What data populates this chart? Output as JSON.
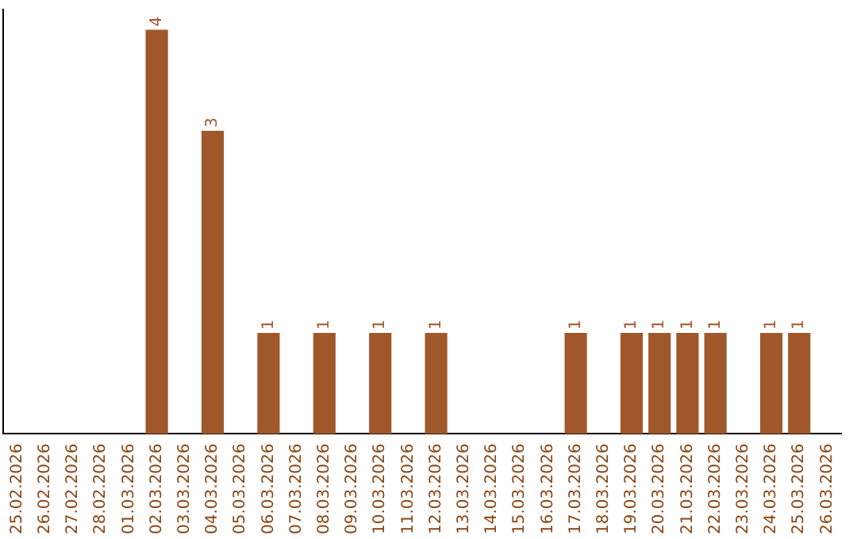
{
  "chart_data": {
    "type": "bar",
    "categories": [
      "25.02.2026",
      "26.02.2026",
      "27.02.2026",
      "28.02.2026",
      "01.03.2026",
      "02.03.2026",
      "03.03.2026",
      "04.03.2026",
      "05.03.2026",
      "06.03.2026",
      "07.03.2026",
      "08.03.2026",
      "09.03.2026",
      "10.03.2026",
      "11.03.2026",
      "12.03.2026",
      "13.03.2026",
      "14.03.2026",
      "15.03.2026",
      "16.03.2026",
      "17.03.2026",
      "18.03.2026",
      "19.03.2026",
      "20.03.2026",
      "21.03.2026",
      "22.03.2026",
      "23.03.2026",
      "24.03.2026",
      "25.03.2026",
      "26.03.2026"
    ],
    "values": [
      0,
      0,
      0,
      0,
      0,
      4,
      0,
      3,
      0,
      1,
      0,
      1,
      0,
      1,
      0,
      1,
      0,
      0,
      0,
      0,
      1,
      0,
      1,
      1,
      1,
      1,
      0,
      1,
      1,
      0
    ],
    "value_labels": [
      null,
      null,
      null,
      null,
      null,
      "4",
      null,
      "3",
      null,
      "1",
      null,
      "1",
      null,
      "1",
      null,
      "1",
      null,
      null,
      null,
      null,
      "1",
      null,
      "1",
      "1",
      "1",
      "1",
      null,
      "1",
      "1",
      null
    ],
    "color": "#a0582a",
    "ylim": [
      0,
      4.2
    ],
    "tick_labels": "x"
  }
}
